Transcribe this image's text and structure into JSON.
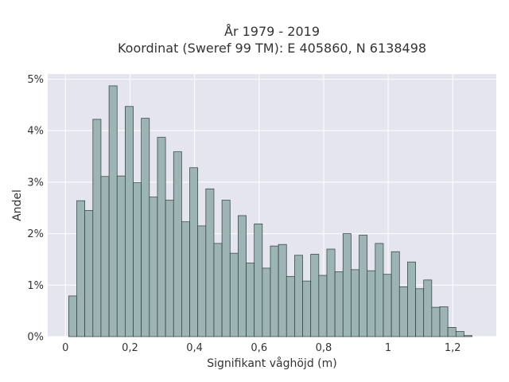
{
  "chart_data": {
    "type": "bar",
    "title": "År 1979 - 2019",
    "subtitle": "Koordinat (Sweref 99 TM): E 405860, N 6138498",
    "xlabel": "Signifikant våghöjd (m)",
    "ylabel": "Andel",
    "xlim": [
      -0.055,
      1.335
    ],
    "ylim": [
      0,
      0.051
    ],
    "x_ticks": [
      0,
      0.2,
      0.4,
      0.6,
      0.8,
      1.0,
      1.2
    ],
    "x_tick_labels": [
      "0",
      "0,2",
      "0,4",
      "0,6",
      "0,8",
      "1",
      "1,2"
    ],
    "y_ticks": [
      0,
      0.01,
      0.02,
      0.03,
      0.04,
      0.05
    ],
    "y_tick_labels": [
      "0%",
      "1%",
      "2%",
      "3%",
      "4%",
      "5%"
    ],
    "grid": true,
    "bin_width": 0.025,
    "bin_start": 0.01,
    "values": [
      0.0079,
      0.0264,
      0.0245,
      0.0422,
      0.0311,
      0.0487,
      0.0312,
      0.0447,
      0.0299,
      0.0424,
      0.0271,
      0.0387,
      0.0265,
      0.0359,
      0.0223,
      0.0328,
      0.0215,
      0.0287,
      0.0181,
      0.0265,
      0.0162,
      0.0235,
      0.0143,
      0.0219,
      0.0133,
      0.0176,
      0.0179,
      0.0117,
      0.0158,
      0.0108,
      0.016,
      0.0119,
      0.017,
      0.0126,
      0.02,
      0.013,
      0.0197,
      0.0128,
      0.0181,
      0.0121,
      0.0165,
      0.0097,
      0.0145,
      0.0093,
      0.011,
      0.0057,
      0.0058,
      0.0018,
      0.001,
      0.0002
    ],
    "colors": {
      "bar_fill": "#9cb4b4",
      "bar_stroke": "#2e3b3b",
      "plot_bg": "#e5e5f0",
      "grid": "#ffffff",
      "text": "#333333"
    }
  }
}
